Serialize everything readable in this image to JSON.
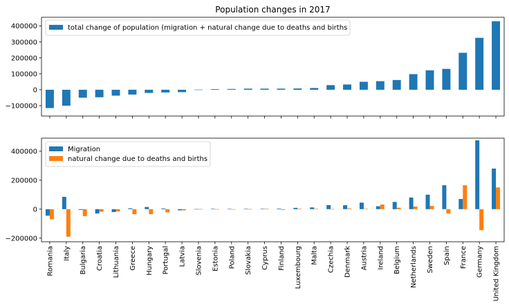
{
  "chart_data": [
    {
      "type": "bar",
      "title": "Population changes in 2017",
      "xlabel": "",
      "ylabel": "",
      "ylim": [
        -165000,
        455000
      ],
      "yticks": [
        -100000,
        0,
        100000,
        200000,
        300000,
        400000
      ],
      "ytick_labels": [
        "−100000",
        "0",
        "100000",
        "200000",
        "300000",
        "400000"
      ],
      "grid": false,
      "legend_position": "top-left",
      "categories": [
        "Romania",
        "Italy",
        "Bulgaria",
        "Croatia",
        "Lithuania",
        "Greece",
        "Hungary",
        "Portugal",
        "Latvia",
        "Slovenia",
        "Estonia",
        "Poland",
        "Slovakia",
        "Cyprus",
        "Finland",
        "Luxembourg",
        "Malta",
        "Czechia",
        "Denmark",
        "Austria",
        "Ireland",
        "Belgium",
        "Netherlands",
        "Sweden",
        "Spain",
        "France",
        "Germany",
        "United Kingdom"
      ],
      "series": [
        {
          "name": "total change of population (migration + natural change due to deaths and births",
          "color": "#1f77b4",
          "values": [
            -115000,
            -100000,
            -50000,
            -47000,
            -37000,
            -30000,
            -20000,
            -17000,
            -15000,
            1000,
            4000,
            5000,
            7000,
            7000,
            7000,
            8000,
            11000,
            29000,
            33000,
            50000,
            54000,
            61000,
            98000,
            122000,
            131000,
            232000,
            326000,
            430000
          ]
        }
      ]
    },
    {
      "type": "bar",
      "title": "",
      "xlabel": "",
      "ylabel": "",
      "ylim": [
        -225000,
        490000
      ],
      "yticks": [
        -200000,
        0,
        200000,
        400000
      ],
      "ytick_labels": [
        "−200000",
        "0",
        "200000",
        "400000"
      ],
      "grid": false,
      "legend_position": "top-left",
      "categories": [
        "Romania",
        "Italy",
        "Bulgaria",
        "Croatia",
        "Lithuania",
        "Greece",
        "Hungary",
        "Portugal",
        "Latvia",
        "Slovenia",
        "Estonia",
        "Poland",
        "Slovakia",
        "Cyprus",
        "Finland",
        "Luxembourg",
        "Malta",
        "Czechia",
        "Denmark",
        "Austria",
        "Ireland",
        "Belgium",
        "Netherlands",
        "Sweden",
        "Spain",
        "France",
        "Germany",
        "United Kingdom"
      ],
      "series": [
        {
          "name": "Migration",
          "color": "#1f77b4",
          "values": [
            -45000,
            85000,
            -5000,
            -30000,
            -20000,
            6000,
            15000,
            5000,
            -8000,
            1000,
            3000,
            2000,
            3000,
            3000,
            4000,
            9000,
            12000,
            28000,
            27000,
            45000,
            20000,
            50000,
            80000,
            100000,
            165000,
            70000,
            475000,
            280000
          ]
        },
        {
          "name": "natural change due to deaths and births",
          "color": "#ff7f0e",
          "values": [
            -70000,
            -190000,
            -48000,
            -17000,
            -15000,
            -35000,
            -35000,
            -22000,
            -8000,
            1000,
            -2000,
            0,
            1000,
            3000,
            -5000,
            2000,
            2000,
            1000,
            5000,
            3000,
            32000,
            10000,
            18000,
            22000,
            -30000,
            165000,
            -145000,
            150000
          ]
        }
      ]
    }
  ]
}
